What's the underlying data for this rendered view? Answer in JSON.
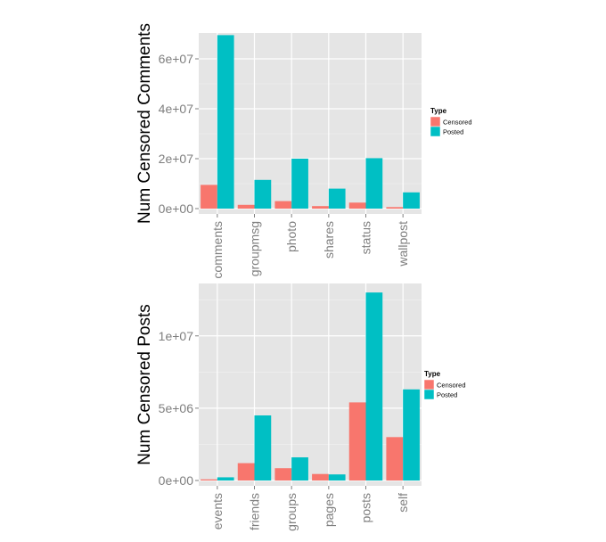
{
  "chart_data": [
    {
      "type": "bar",
      "ylabel": "Num Censored Comments",
      "categories": [
        "comments",
        "groupmsg",
        "photo",
        "shares",
        "status",
        "wallpost"
      ],
      "series": [
        {
          "name": "Censored",
          "values": [
            9500000,
            1500000,
            3000000,
            1000000,
            2400000,
            600000
          ]
        },
        {
          "name": "Posted",
          "values": [
            69500000,
            11500000,
            20000000,
            8000000,
            20200000,
            6500000
          ]
        }
      ],
      "ylim": [
        0,
        70000000
      ],
      "yticks": [
        "0e+00",
        "2e+07",
        "4e+07",
        "6e+07"
      ],
      "ytick_values": [
        0,
        20000000,
        40000000,
        60000000
      ],
      "legend": {
        "title": "Type",
        "placement": "right"
      },
      "grid": true
    },
    {
      "type": "bar",
      "ylabel": "Num Censored Posts",
      "categories": [
        "events",
        "friends",
        "groups",
        "pages",
        "posts",
        "self"
      ],
      "series": [
        {
          "name": "Censored",
          "values": [
            80000,
            1200000,
            850000,
            450000,
            5400000,
            3000000
          ]
        },
        {
          "name": "Posted",
          "values": [
            220000,
            4500000,
            1600000,
            420000,
            13000000,
            6300000
          ]
        }
      ],
      "ylim": [
        0,
        13500000
      ],
      "yticks": [
        "0e+00",
        "5e+06",
        "1e+07"
      ],
      "ytick_values": [
        0,
        5000000,
        10000000
      ],
      "legend": {
        "title": "Type",
        "placement": "right"
      },
      "grid": true
    }
  ],
  "colors": {
    "Censored": "#f8766d",
    "Posted": "#00bfc4",
    "panel": "#e5e5e5"
  }
}
